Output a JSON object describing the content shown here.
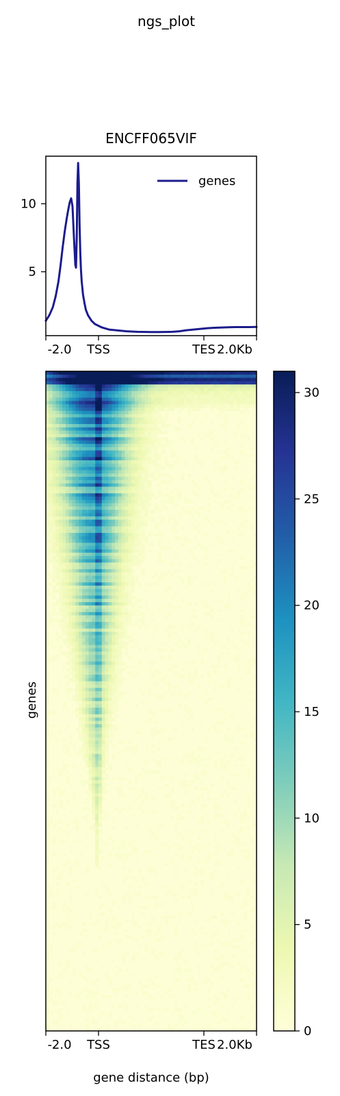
{
  "figure": {
    "suptitle": "ngs_plot"
  },
  "chart_data": [
    {
      "type": "line",
      "title": "ENCFF065VIF",
      "xlabel": "",
      "ylabel": "",
      "x_tick_labels": [
        "-2.0",
        "TSS",
        "TES",
        "2.0Kb"
      ],
      "y_ticks": [
        5,
        10
      ],
      "ylim": [
        0.3,
        13.5
      ],
      "legend": {
        "position": "top-right",
        "entries": [
          "genes"
        ]
      },
      "series": [
        {
          "name": "genes",
          "color": "#1c1c8c",
          "x": [
            0,
            5,
            10,
            14,
            18,
            21,
            24,
            27,
            30,
            32,
            34,
            36,
            38,
            40,
            42,
            43,
            44,
            45,
            46,
            47,
            48,
            49,
            50,
            51,
            52,
            53,
            55,
            57,
            60,
            65,
            70,
            80,
            90,
            100,
            115,
            130,
            150,
            160,
            170,
            180,
            190,
            200,
            210,
            220,
            230,
            240,
            250,
            260,
            270,
            280,
            290,
            300
          ],
          "y": [
            1.4,
            1.8,
            2.4,
            3.2,
            4.3,
            5.5,
            6.8,
            8.0,
            9.0,
            9.6,
            10.1,
            10.4,
            9.8,
            7.5,
            5.5,
            5.3,
            7.5,
            11.5,
            13.0,
            11.5,
            8.5,
            6.5,
            5.2,
            4.3,
            3.8,
            3.3,
            2.7,
            2.2,
            1.8,
            1.4,
            1.15,
            0.9,
            0.75,
            0.7,
            0.62,
            0.58,
            0.56,
            0.56,
            0.57,
            0.58,
            0.62,
            0.7,
            0.75,
            0.8,
            0.85,
            0.88,
            0.9,
            0.92,
            0.93,
            0.93,
            0.93,
            0.94
          ]
        }
      ]
    },
    {
      "type": "heatmap",
      "xlabel": "gene distance (bp)",
      "ylabel": "genes",
      "x_tick_labels": [
        "-2.0",
        "TSS",
        "TES",
        "2.0Kb"
      ],
      "colormap": "YlGnBu",
      "color_range": [
        0,
        31
      ],
      "colorbar_ticks": [
        0,
        5,
        10,
        15,
        20,
        25,
        30
      ],
      "rows_sorted": "descending signal",
      "region_note": "signal concentrated near TSS; signal band narrows with rank until about 70% of rows"
    }
  ]
}
